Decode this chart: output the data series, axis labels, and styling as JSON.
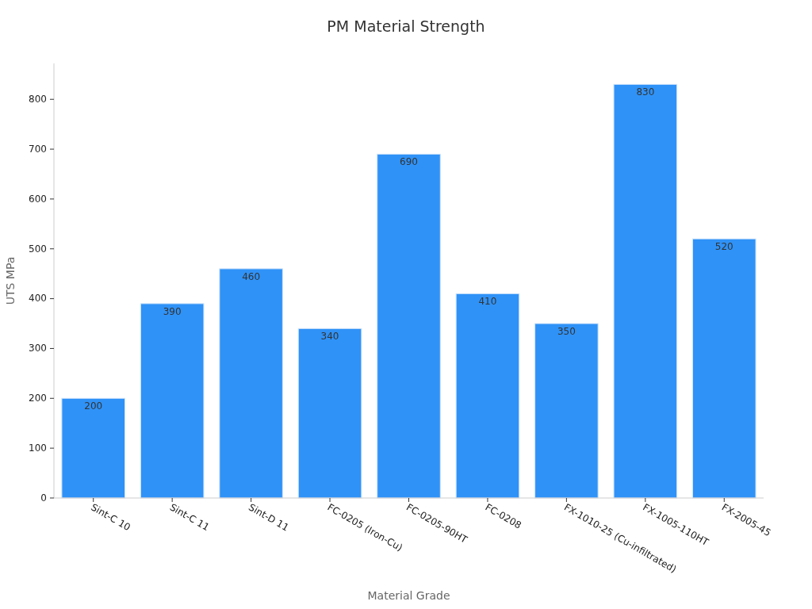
{
  "chart_data": {
    "type": "bar",
    "title": "PM Material Strength",
    "xlabel": "Material Grade",
    "ylabel": "UTS MPa",
    "categories": [
      "Sint-C 10",
      "Sint-C 11",
      "Sint-D 11",
      "FC-0205 (Iron-Cu)",
      "FC-0205-90HT",
      "FC-0208",
      "FX-1010-25 (Cu-infiltrated)",
      "FX-1005-110HT",
      "FX-2005-45"
    ],
    "values": [
      200,
      390,
      460,
      340,
      690,
      410,
      350,
      830,
      520
    ],
    "color": "#2f92f7",
    "ylim": [
      0,
      872
    ],
    "yticks": [
      0,
      100,
      200,
      300,
      400,
      500,
      600,
      700,
      800
    ],
    "grid": false,
    "data_labels": true
  }
}
